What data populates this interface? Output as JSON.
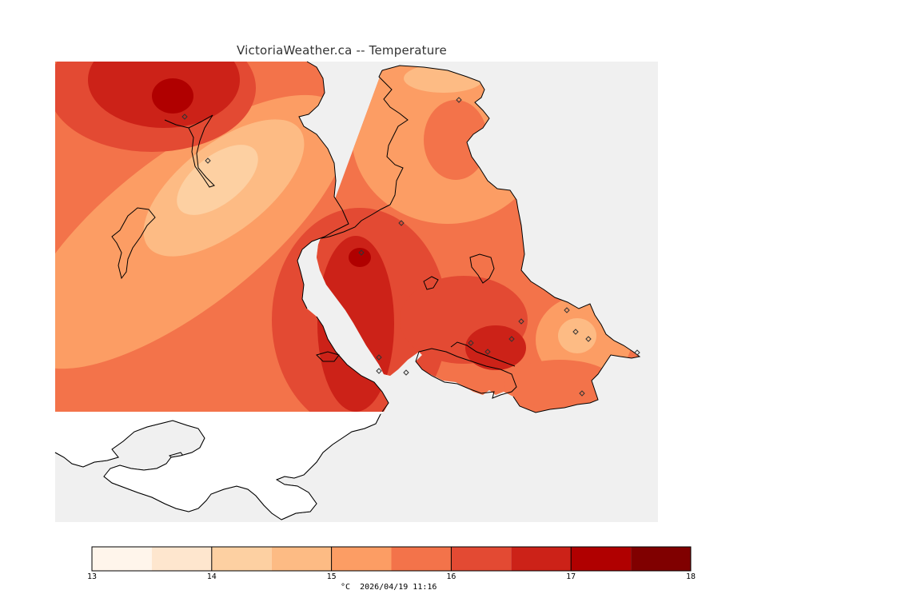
{
  "title": "VictoriaWeather.ca -- Temperature",
  "colors": {
    "water": "#f0f0f0",
    "land_outside": "#ffffff",
    "bins": [
      "#fff5eb",
      "#fee6ce",
      "#fdd0a2",
      "#fdbb84",
      "#fc9d64",
      "#f3734a",
      "#e34a33",
      "#cc2218",
      "#b00000",
      "#800000"
    ]
  },
  "colorbar": {
    "min": 13,
    "max": 18,
    "step": 0.5,
    "tick_labels": [
      "13",
      "14",
      "15",
      "16",
      "17",
      "18"
    ]
  },
  "footer": "°C  2026/04/19 11:16",
  "stations_count_note": ""
}
